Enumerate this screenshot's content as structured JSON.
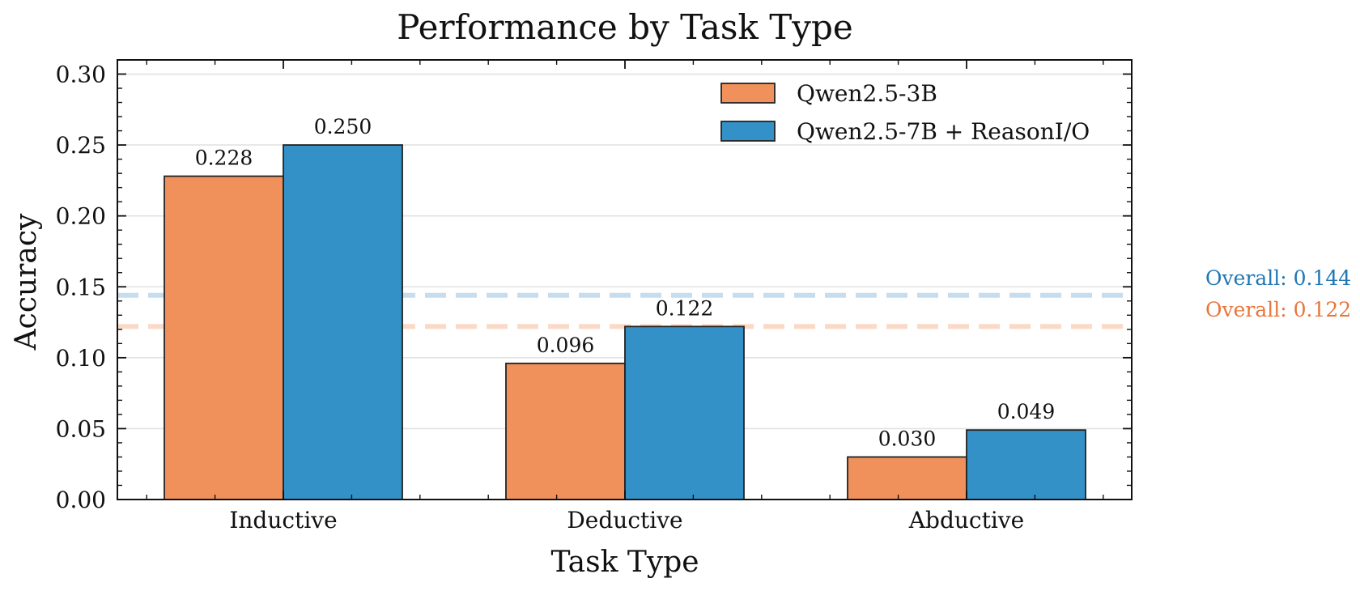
{
  "chart_data": {
    "type": "bar",
    "title": "Performance by Task Type",
    "xlabel": "Task Type",
    "ylabel": "Accuracy",
    "categories": [
      "Inductive",
      "Deductive",
      "Abductive"
    ],
    "series": [
      {
        "name": "Qwen2.5-3B",
        "values": [
          0.228,
          0.096,
          0.03
        ],
        "value_labels": [
          "0.228",
          "0.096",
          "0.030"
        ],
        "color": "#F0915C"
      },
      {
        "name": "Qwen2.5-7B + ReasonI/O",
        "values": [
          0.25,
          0.122,
          0.049
        ],
        "value_labels": [
          "0.250",
          "0.122",
          "0.049"
        ],
        "color": "#3391C8"
      }
    ],
    "reference_lines": [
      {
        "value": 0.144,
        "label": "Overall: 0.144",
        "color": "#1F77B4",
        "line_color": "#C6DDF0"
      },
      {
        "value": 0.122,
        "label": "Overall: 0.122",
        "color": "#E8763A",
        "line_color": "#FAD9C6"
      }
    ],
    "ylim": [
      0,
      0.31
    ],
    "yticks": [
      0.0,
      0.05,
      0.1,
      0.15,
      0.2,
      0.25,
      0.3
    ],
    "ytick_labels": [
      "0.00",
      "0.05",
      "0.10",
      "0.15",
      "0.20",
      "0.25",
      "0.30"
    ],
    "grid": "horizontal",
    "legend_position": "top-right"
  }
}
